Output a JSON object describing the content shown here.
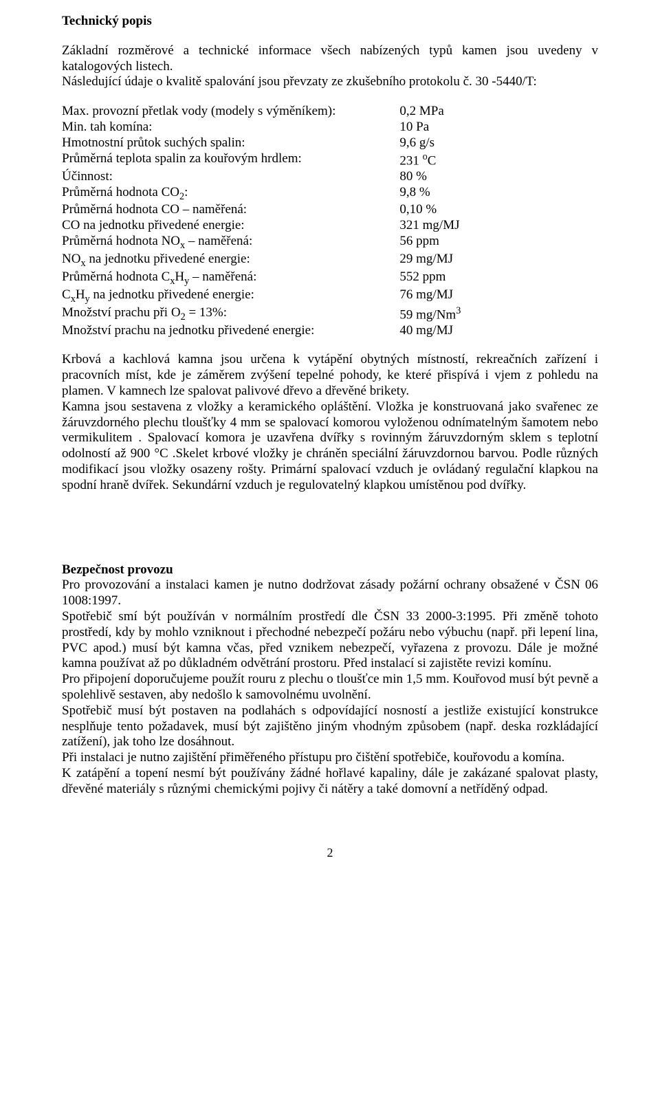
{
  "section1": {
    "title": "Technický popis",
    "intro": "Základní rozměrové a technické informace všech nabízených typů kamen jsou uvedeny v katalogových listech.",
    "intro2": "Následující údaje o kvalitě spalování jsou převzaty ze zkušebního protokolu č. 30 -5440/T:"
  },
  "specs": [
    {
      "label": "Max. provozní přetlak vody (modely s výměníkem):",
      "value": "0,2 MPa"
    },
    {
      "label": "Min. tah komína:",
      "value": "10 Pa"
    },
    {
      "label": "Hmotnostní průtok suchých spalin:",
      "value": "9,6 g/s"
    },
    {
      "label": "Průměrná teplota spalin za kouřovým hrdlem:",
      "value_html": "231 <sup>o</sup>C"
    },
    {
      "label": "Účinnost:",
      "value": "80 %"
    },
    {
      "label_html": "Průměrná hodnota CO<sub>2</sub>:",
      "value": "9,8 %"
    },
    {
      "label": "Průměrná hodnota  CO – naměřená:",
      "value": "0,10 %"
    },
    {
      "label": "CO na jednotku přivedené energie:",
      "value": "321 mg/MJ"
    },
    {
      "label_html": "Průměrná hodnota NO<sub>x</sub> – naměřená:",
      "value": "56 ppm"
    },
    {
      "label_html": "NO<sub>x</sub>  na jednotku přivedené energie:",
      "value": "29 mg/MJ"
    },
    {
      "label_html": "Průměrná hodnota C<sub>x</sub>H<sub>y</sub> – naměřená:",
      "value": "552 ppm"
    },
    {
      "label_html": "C<sub>x</sub>H<sub>y</sub> na jednotku přivedené energie:",
      "value": "76 mg/MJ"
    },
    {
      "label_html": "Množství prachu při O<sub>2</sub> = 13%:",
      "value_html": "59 mg/Nm<sup>3</sup>"
    },
    {
      "label": "Množství prachu na jednotku přivedené energie:",
      "value": "40 mg/MJ"
    }
  ],
  "body1": "Krbová a kachlová kamna jsou určena k vytápění obytných místností, rekreačních zařízení i pracovních míst, kde je záměrem zvýšení tepelné pohody, ke které přispívá i vjem z pohledu na plamen. V kamnech lze  spalovat  palivové dřevo   a dřevěné  brikety.",
  "body2": "Kamna jsou  sestavena z vložky a keramického opláštění. Vložka je konstruovaná  jako svařenec ze žáruvzdorného  plechu tloušťky 4 mm  se  spalovací komorou vyloženou odnímatelným  šamotem nebo vermikulitem . Spalovací komora je uzavřena dvířky s rovinným žáruvzdorným sklem s teplotní odolností až 900 °C .Skelet krbové vložky je chráněn speciální žáruvzdornou barvou. Podle různých modifikací jsou vložky osazeny rošty. Primární spalovací vzduch je ovládaný regulační klapkou na spodní hraně dvířek. Sekundární vzduch je regulovatelný klapkou umístěnou pod dvířky.",
  "section2": {
    "title": "Bezpečnost provozu",
    "p1": "Pro provozování a instalaci kamen je nutno dodržovat zásady požární ochrany obsažené v ČSN 06 1008:1997.",
    "p2": "Spotřebič smí být používán v normálním prostředí dle ČSN 33 2000-3:1995. Při změně tohoto prostředí, kdy by mohlo vzniknout i přechodné nebezpečí požáru nebo výbuchu  (např. při lepení lina, PVC apod.) musí být kamna včas, před vznikem nebezpečí, vyřazena z provozu. Dále je možné kamna používat až po důkladném odvětrání prostoru. Před instalací si zajistěte revizi komínu.",
    "p3": "Pro připojení doporučujeme použít rouru z plechu o tloušťce min 1,5 mm. Kouřovod musí být pevně a spolehlivě sestaven, aby nedošlo k samovolnému uvolnění.",
    "p4": "Spotřebič musí být postaven na podlahách s odpovídající nosností a jestliže existující konstrukce nesplňuje tento požadavek, musí být zajištěno jiným vhodným způsobem (např. deska rozkládající zatížení), jak toho lze dosáhnout.",
    "p5": "Při instalaci je nutno zajištění přiměřeného přístupu pro čištění spotřebiče, kouřovodu a komína.",
    "p6": "K zatápění a topení nesmí být používány žádné hořlavé kapaliny, dále je zakázané spalovat plasty, dřevěné materiály s různými chemickými pojivy či nátěry a také domovní a netříděný odpad."
  },
  "page_number": "2"
}
